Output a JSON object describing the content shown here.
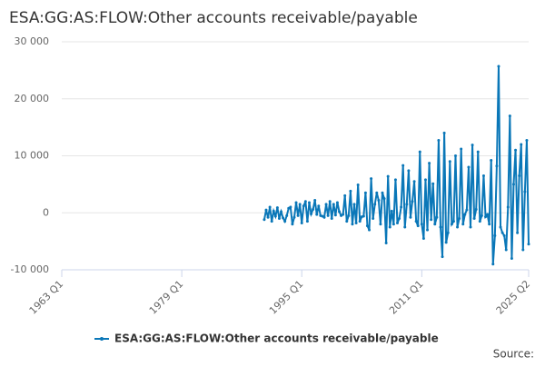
{
  "chart_data": {
    "type": "line",
    "title": "ESA:GG:AS:FLOW:Other accounts receivable/payable",
    "source": "Source:",
    "xlim": [
      "1963 Q1",
      "2025 Q2"
    ],
    "xticks": [
      "1963 Q1",
      "1979 Q1",
      "1995 Q1",
      "2011 Q1",
      "2025 Q2"
    ],
    "ylim": [
      -10000,
      30000
    ],
    "yticks": [
      {
        "value": -10000,
        "label": "-10 000"
      },
      0,
      {
        "value": 10000,
        "label": "10 000"
      },
      {
        "value": 20000,
        "label": "20 000"
      },
      {
        "value": 30000,
        "label": "30 000"
      }
    ],
    "grid": true,
    "legend": "bottom",
    "x": [
      "1990 Q1",
      "1990 Q2",
      "1990 Q3",
      "1990 Q4",
      "1991 Q1",
      "1991 Q2",
      "1991 Q3",
      "1991 Q4",
      "1992 Q1",
      "1992 Q2",
      "1992 Q3",
      "1992 Q4",
      "1993 Q1",
      "1993 Q2",
      "1993 Q3",
      "1993 Q4",
      "1994 Q1",
      "1994 Q2",
      "1994 Q3",
      "1994 Q4",
      "1995 Q1",
      "1995 Q2",
      "1995 Q3",
      "1995 Q4",
      "1996 Q1",
      "1996 Q2",
      "1996 Q3",
      "1996 Q4",
      "1997 Q1",
      "1997 Q2",
      "1997 Q3",
      "1997 Q4",
      "1998 Q1",
      "1998 Q2",
      "1998 Q3",
      "1998 Q4",
      "1999 Q1",
      "1999 Q2",
      "1999 Q3",
      "1999 Q4",
      "2000 Q1",
      "2000 Q2",
      "2000 Q3",
      "2000 Q4",
      "2001 Q1",
      "2001 Q2",
      "2001 Q3",
      "2001 Q4",
      "2002 Q1",
      "2002 Q2",
      "2002 Q3",
      "2002 Q4",
      "2003 Q1",
      "2003 Q2",
      "2003 Q3",
      "2003 Q4",
      "2004 Q1",
      "2004 Q2",
      "2004 Q3",
      "2004 Q4",
      "2005 Q1",
      "2005 Q2",
      "2005 Q3",
      "2005 Q4",
      "2006 Q1",
      "2006 Q2",
      "2006 Q3",
      "2006 Q4",
      "2007 Q1",
      "2007 Q2",
      "2007 Q3",
      "2007 Q4",
      "2008 Q1",
      "2008 Q2",
      "2008 Q3",
      "2008 Q4",
      "2009 Q1",
      "2009 Q2",
      "2009 Q3",
      "2009 Q4",
      "2010 Q1",
      "2010 Q2",
      "2010 Q3",
      "2010 Q4",
      "2011 Q1",
      "2011 Q2",
      "2011 Q3",
      "2011 Q4",
      "2012 Q1",
      "2012 Q2",
      "2012 Q3",
      "2012 Q4",
      "2013 Q1",
      "2013 Q2",
      "2013 Q3",
      "2013 Q4",
      "2014 Q1",
      "2014 Q2",
      "2014 Q3",
      "2014 Q4",
      "2015 Q1",
      "2015 Q2",
      "2015 Q3",
      "2015 Q4",
      "2016 Q1",
      "2016 Q2",
      "2016 Q3",
      "2016 Q4",
      "2017 Q1",
      "2017 Q2",
      "2017 Q3",
      "2017 Q4",
      "2018 Q1",
      "2018 Q2",
      "2018 Q3",
      "2018 Q4",
      "2019 Q1",
      "2019 Q2",
      "2019 Q3",
      "2019 Q4",
      "2020 Q1",
      "2020 Q2",
      "2020 Q3",
      "2020 Q4",
      "2021 Q1",
      "2021 Q2",
      "2021 Q3",
      "2021 Q4",
      "2022 Q1",
      "2022 Q2",
      "2022 Q3",
      "2022 Q4",
      "2023 Q1",
      "2023 Q2",
      "2023 Q3",
      "2023 Q4",
      "2024 Q1",
      "2024 Q2",
      "2024 Q3",
      "2024 Q4",
      "2025 Q1",
      "2025 Q2"
    ],
    "series": [
      {
        "name": "ESA:GG:AS:FLOW:Other accounts receivable/payable",
        "color": "#0a77b8",
        "values": [
          -1200,
          500,
          -800,
          1000,
          -1500,
          300,
          -600,
          900,
          -1000,
          200,
          -900,
          -1500,
          -500,
          800,
          1000,
          -2000,
          -800,
          1800,
          -500,
          1500,
          -1800,
          1200,
          2000,
          -1500,
          1800,
          -200,
          600,
          2200,
          -300,
          1200,
          -500,
          -600,
          -800,
          1500,
          -500,
          2000,
          -1000,
          1500,
          -400,
          1800,
          200,
          -500,
          -300,
          3000,
          -1500,
          -500,
          3800,
          -2000,
          1500,
          -1800,
          4900,
          -1500,
          -700,
          -600,
          3500,
          -2300,
          -3000,
          6000,
          -1000,
          1500,
          3500,
          2200,
          -2000,
          3500,
          2500,
          -5300,
          6400,
          -2500,
          300,
          -2000,
          5800,
          -1800,
          -1000,
          1000,
          8300,
          -2500,
          1500,
          7400,
          -800,
          2000,
          5500,
          -1500,
          -2300,
          10700,
          -2000,
          -4500,
          5800,
          -3000,
          8700,
          -1200,
          5100,
          -2000,
          -800,
          12700,
          -2500,
          -7700,
          14000,
          -5200,
          -3500,
          9000,
          -2000,
          -1500,
          10000,
          -2500,
          -1000,
          11200,
          -2000,
          -300,
          500,
          8000,
          -2500,
          11900,
          -1000,
          600,
          10700,
          -1500,
          -500,
          6500,
          -700,
          -300,
          -2000,
          9200,
          -9000,
          -4000,
          8200,
          25700,
          -2500,
          -3500,
          -4000,
          -6500,
          1000,
          17000,
          -8000,
          5000,
          11000,
          -3500,
          6500,
          12000,
          -6500,
          3700,
          12700,
          -5500
        ]
      }
    ]
  }
}
